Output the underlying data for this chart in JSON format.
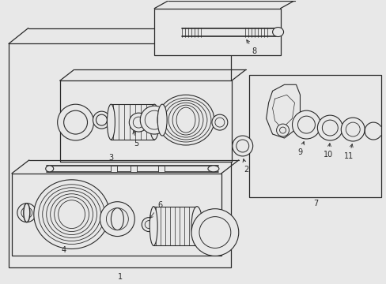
{
  "bg_color": "#e8e8e8",
  "fg_color": "#2a2a2a",
  "fig_width": 4.89,
  "fig_height": 3.6,
  "dpi": 100
}
